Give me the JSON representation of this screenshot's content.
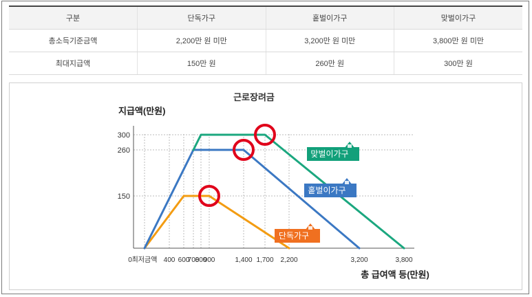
{
  "table": {
    "headers": [
      "구분",
      "단독가구",
      "홑벌이가구",
      "맞벌이가구"
    ],
    "rows": [
      [
        "총소득기준금액",
        "2,200만 원 미만",
        "3,200만 원 미만",
        "3,800만 원 미만"
      ],
      [
        "최대지급액",
        "150만 원",
        "260만 원",
        "300만 원"
      ]
    ]
  },
  "chart_data": {
    "type": "line",
    "title": "근로장려금",
    "xlabel": "총 급여액 등(만원)",
    "ylabel": "지급액(만원)",
    "x_ticks": [
      {
        "value": 0,
        "label": "0"
      },
      {
        "value": 200,
        "label": "최저금액"
      },
      {
        "value": 400,
        "label": "400"
      },
      {
        "value": 600,
        "label": "600"
      },
      {
        "value": 700,
        "label": "700"
      },
      {
        "value": 800,
        "label": "800"
      },
      {
        "value": 900,
        "label": "900"
      },
      {
        "value": 1400,
        "label": "1,400"
      },
      {
        "value": 1700,
        "label": "1,700"
      },
      {
        "value": 2200,
        "label": "2,200"
      },
      {
        "value": 3200,
        "label": "3,200"
      },
      {
        "value": 3800,
        "label": "3,800"
      }
    ],
    "y_ticks": [
      150,
      260,
      300
    ],
    "xlim": [
      0,
      3800
    ],
    "ylim": [
      0,
      330
    ],
    "series": [
      {
        "name": "단독가구",
        "color": "#f39c12",
        "label_color": "#f07020",
        "points": [
          [
            200,
            0
          ],
          [
            600,
            150
          ],
          [
            900,
            150
          ],
          [
            2200,
            0
          ]
        ],
        "peak_end": [
          900,
          150
        ]
      },
      {
        "name": "홑벌이가구",
        "color": "#3b78c3",
        "label_color": "#3b78c3",
        "points": [
          [
            200,
            0
          ],
          [
            700,
            260
          ],
          [
            1400,
            260
          ],
          [
            3200,
            0
          ]
        ],
        "peak_end": [
          1400,
          260
        ]
      },
      {
        "name": "맞벌이가구",
        "color": "#1ba77f",
        "label_color": "#12a07a",
        "points": [
          [
            700,
            260
          ],
          [
            800,
            300
          ],
          [
            1700,
            300
          ],
          [
            3800,
            0
          ]
        ],
        "peak_end": [
          1700,
          300
        ]
      }
    ],
    "highlight_color": "#e0001a",
    "grid": "dotted",
    "legend": "series labels placed beside lines"
  }
}
